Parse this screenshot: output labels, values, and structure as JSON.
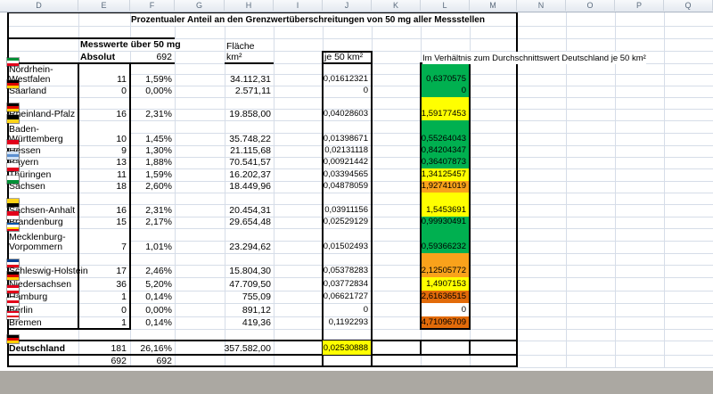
{
  "sheet": {
    "columns": [
      "D",
      "E",
      "F",
      "G",
      "H",
      "I",
      "J",
      "K",
      "L",
      "M",
      "N",
      "O",
      "P",
      "Q"
    ]
  },
  "title": "Prozentualer Anteil an den Grenzwertüberschreitungen von 50 mg aller Messstellen",
  "headers": {
    "messwerte": "Messwerte über 50 mg",
    "absolut": "Absolut",
    "total_count": "692",
    "flaeche": "Fläche km²",
    "je50": "je 50 km²",
    "verhaeltnis": "Im Verhältnis zum Durchschnittswert Deutschland je 50 km²"
  },
  "colors": {
    "green": "#00B050",
    "yellow": "#FFFF00",
    "orange": "#F9A21B",
    "dark_orange": "#E26B0A",
    "highlight_yellow": "#FFFF00"
  },
  "rows": [
    {
      "name": "Nordrhein-Westfalen",
      "absolut": "11",
      "percent": "1,59%",
      "flaeche": "34.112,31",
      "je50": "0,01612321",
      "ratio": "0,6370575",
      "ratio_bg": "#00B050",
      "flag": [
        "#009036",
        "#ffffff",
        "#e2001a"
      ]
    },
    {
      "name": "Saarland",
      "absolut": "0",
      "percent": "0,00%",
      "flaeche": "2.571,11",
      "je50": "0",
      "ratio": "0",
      "ratio_bg": "#00B050",
      "flag": [
        "#000000",
        "#dd0000",
        "#ffce00"
      ]
    },
    {
      "name": "Rheinland-Pfalz",
      "absolut": "16",
      "percent": "2,31%",
      "flaeche": "19.858,00",
      "je50": "0,04028603",
      "ratio": "1,59177453",
      "ratio_bg": "#FFFF00",
      "flag": [
        "#000000",
        "#dd0000",
        "#ffce00"
      ]
    },
    {
      "name": "Baden-Württemberg",
      "absolut": "10",
      "percent": "1,45%",
      "flaeche": "35.748,22",
      "je50": "0,01398671",
      "ratio": "0,55264043",
      "ratio_bg": "#00B050",
      "flag": [
        "#000000",
        "#fdd317"
      ]
    },
    {
      "name": "Hessen",
      "absolut": "9",
      "percent": "1,30%",
      "flaeche": "21.115,68",
      "je50": "0,02131118",
      "ratio": "0,84204347",
      "ratio_bg": "#00B050",
      "flag": [
        "#e2001a",
        "#ffffff"
      ]
    },
    {
      "name": "Bayern",
      "absolut": "13",
      "percent": "1,88%",
      "flaeche": "70.541,57",
      "je50": "0,00921442",
      "ratio": "0,36407873",
      "ratio_bg": "#00B050",
      "flag": [
        "#cfe0f4",
        "#5b8fd0",
        "#cfe0f4"
      ]
    },
    {
      "name": "Thüringen",
      "absolut": "11",
      "percent": "1,59%",
      "flaeche": "16.202,37",
      "je50": "0,03394565",
      "ratio": "1,34125457",
      "ratio_bg": "#FFFF00",
      "flag": [
        "#ffffff",
        "#e2001a"
      ]
    },
    {
      "name": "Sachsen",
      "absolut": "18",
      "percent": "2,60%",
      "flaeche": "18.449,96",
      "je50": "0,04878059",
      "ratio": "1,92741019",
      "ratio_bg": "#F9A21B",
      "flag": [
        "#ffffff",
        "#009036"
      ]
    },
    {
      "name": "Sachsen-Anhalt",
      "absolut": "16",
      "percent": "2,31%",
      "flaeche": "20.454,31",
      "je50": "0,03911156",
      "ratio": "1,5453691",
      "ratio_bg": "#FFFF00",
      "flag": [
        "#fdd317",
        "#000000"
      ]
    },
    {
      "name": "Brandenburg",
      "absolut": "15",
      "percent": "2,17%",
      "flaeche": "29.654,48",
      "je50": "0,02529129",
      "ratio": "0,99930491",
      "ratio_bg": "#00B050",
      "flag": [
        "#e2001a",
        "#ffffff"
      ]
    },
    {
      "name": "Mecklenburg-Vorpommern",
      "absolut": "7",
      "percent": "1,01%",
      "flaeche": "23.294,62",
      "je50": "0,01502493",
      "ratio": "0,59366232",
      "ratio_bg": "#00B050",
      "flag": [
        "#0053a5",
        "#ffffff",
        "#ffd500",
        "#e2001a"
      ]
    },
    {
      "name": "Schleswig-Holstein",
      "absolut": "17",
      "percent": "2,46%",
      "flaeche": "15.804,30",
      "je50": "0,05378283",
      "ratio": "2,12505772",
      "ratio_bg": "#F9A21B",
      "flag": [
        "#003d8f",
        "#ffffff",
        "#e2001a"
      ]
    },
    {
      "name": "Niedersachsen",
      "absolut": "36",
      "percent": "5,20%",
      "flaeche": "47.709,50",
      "je50": "0,03772834",
      "ratio": "1,4907153",
      "ratio_bg": "#FFFF00",
      "flag": [
        "#000000",
        "#dd0000",
        "#ffce00"
      ]
    },
    {
      "name": "Hamburg",
      "absolut": "1",
      "percent": "0,14%",
      "flaeche": "755,09",
      "je50": "0,06621727",
      "ratio": "2,61636515",
      "ratio_bg": "#E26B0A",
      "flag": [
        "#e2001a",
        "#ffffff",
        "#e2001a"
      ]
    },
    {
      "name": "Berlin",
      "absolut": "0",
      "percent": "0,00%",
      "flaeche": "891,12",
      "je50": "0",
      "ratio": "0",
      "ratio_bg": "#FFFFFF",
      "flag": [
        "#ffffff",
        "#e2001a",
        "#ffffff"
      ]
    },
    {
      "name": "Bremen",
      "absolut": "1",
      "percent": "0,14%",
      "flaeche": "419,36",
      "je50": "0,1192293",
      "ratio": "4,71096709",
      "ratio_bg": "#E26B0A",
      "flag": [
        "#e2001a",
        "#ffffff",
        "#e2001a",
        "#ffffff"
      ]
    }
  ],
  "totals": {
    "name": "Deutschland",
    "absolut": "181",
    "percent": "26,16%",
    "flaeche": "357.582,00",
    "je50": "0,02530888",
    "je50_bg": "#FFFF00",
    "ratio_bg": "#FFFFFF",
    "flag": [
      "#000000",
      "#dd0000",
      "#ffce00"
    ]
  },
  "footer": {
    "absolut": "692",
    "percent": "692"
  }
}
